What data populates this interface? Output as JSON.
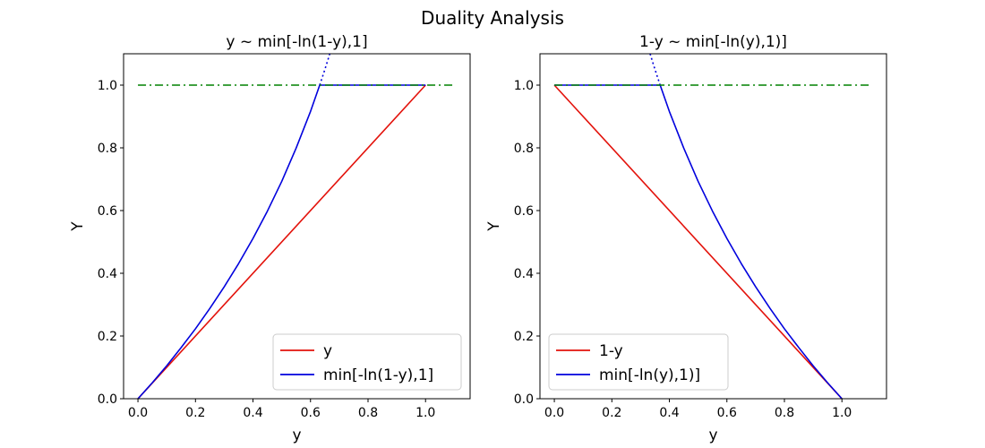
{
  "figure": {
    "suptitle": "Duality Analysis"
  },
  "chart_data": [
    {
      "type": "line",
      "title": "y ~ min[-ln(1-y),1]",
      "xlabel": "y",
      "ylabel": "Y",
      "xlim": [
        -0.05,
        1.155
      ],
      "ylim": [
        0.0,
        1.1
      ],
      "xticks": [
        "0.0",
        "0.2",
        "0.4",
        "0.6",
        "0.8",
        "1.0"
      ],
      "yticks": [
        "0.0",
        "0.2",
        "0.4",
        "0.6",
        "0.8",
        "1.0"
      ],
      "legend_location": "lower-right",
      "series": [
        {
          "name": "y",
          "color": "#e3120b",
          "style": "solid",
          "x": [
            0.0,
            1.0
          ],
          "y": [
            0.0,
            1.0
          ]
        },
        {
          "name": "min[-ln(1-y),1]",
          "color": "#0000dd",
          "style": "solid",
          "x": [
            0.0,
            0.05,
            0.1,
            0.15,
            0.2,
            0.25,
            0.3,
            0.35,
            0.4,
            0.45,
            0.5,
            0.55,
            0.6,
            0.632,
            0.65,
            0.7,
            0.8,
            0.9,
            1.0
          ],
          "y": [
            0.0,
            0.051,
            0.105,
            0.163,
            0.223,
            0.288,
            0.357,
            0.431,
            0.511,
            0.598,
            0.693,
            0.799,
            0.916,
            1.0,
            1.0,
            1.0,
            1.0,
            1.0,
            1.0
          ]
        },
        {
          "color": "#0000dd",
          "style": "dotted",
          "x": [
            0.632,
            0.64,
            0.65,
            0.66,
            0.667
          ],
          "y": [
            1.0,
            1.022,
            1.05,
            1.079,
            1.1
          ]
        },
        {
          "color": "#008000",
          "style": "dashdot",
          "x": [
            0.0,
            1.1
          ],
          "y": [
            1.0,
            1.0
          ]
        }
      ]
    },
    {
      "type": "line",
      "title": "1-y ~ min[-ln(y),1)]",
      "xlabel": "y",
      "ylabel": "Y",
      "xlim": [
        -0.05,
        1.155
      ],
      "ylim": [
        0.0,
        1.1
      ],
      "xticks": [
        "0.0",
        "0.2",
        "0.4",
        "0.6",
        "0.8",
        "1.0"
      ],
      "yticks": [
        "0.0",
        "0.2",
        "0.4",
        "0.6",
        "0.8",
        "1.0"
      ],
      "legend_location": "lower-left",
      "series": [
        {
          "name": "1-y",
          "color": "#e3120b",
          "style": "solid",
          "x": [
            0.0,
            1.0
          ],
          "y": [
            1.0,
            0.0
          ]
        },
        {
          "name": "min[-ln(y),1)]",
          "color": "#0000dd",
          "style": "solid",
          "x": [
            0.0,
            0.1,
            0.2,
            0.3,
            0.368,
            0.4,
            0.45,
            0.5,
            0.55,
            0.6,
            0.65,
            0.7,
            0.75,
            0.8,
            0.85,
            0.9,
            0.95,
            1.0
          ],
          "y": [
            1.0,
            1.0,
            1.0,
            1.0,
            1.0,
            0.916,
            0.799,
            0.693,
            0.598,
            0.511,
            0.431,
            0.357,
            0.288,
            0.223,
            0.163,
            0.105,
            0.051,
            0.0
          ]
        },
        {
          "color": "#0000dd",
          "style": "dotted",
          "x": [
            0.333,
            0.34,
            0.35,
            0.36,
            0.368
          ],
          "y": [
            1.1,
            1.079,
            1.05,
            1.022,
            1.0
          ]
        },
        {
          "color": "#008000",
          "style": "dashdot",
          "x": [
            0.0,
            1.1
          ],
          "y": [
            1.0,
            1.0
          ]
        }
      ]
    }
  ]
}
